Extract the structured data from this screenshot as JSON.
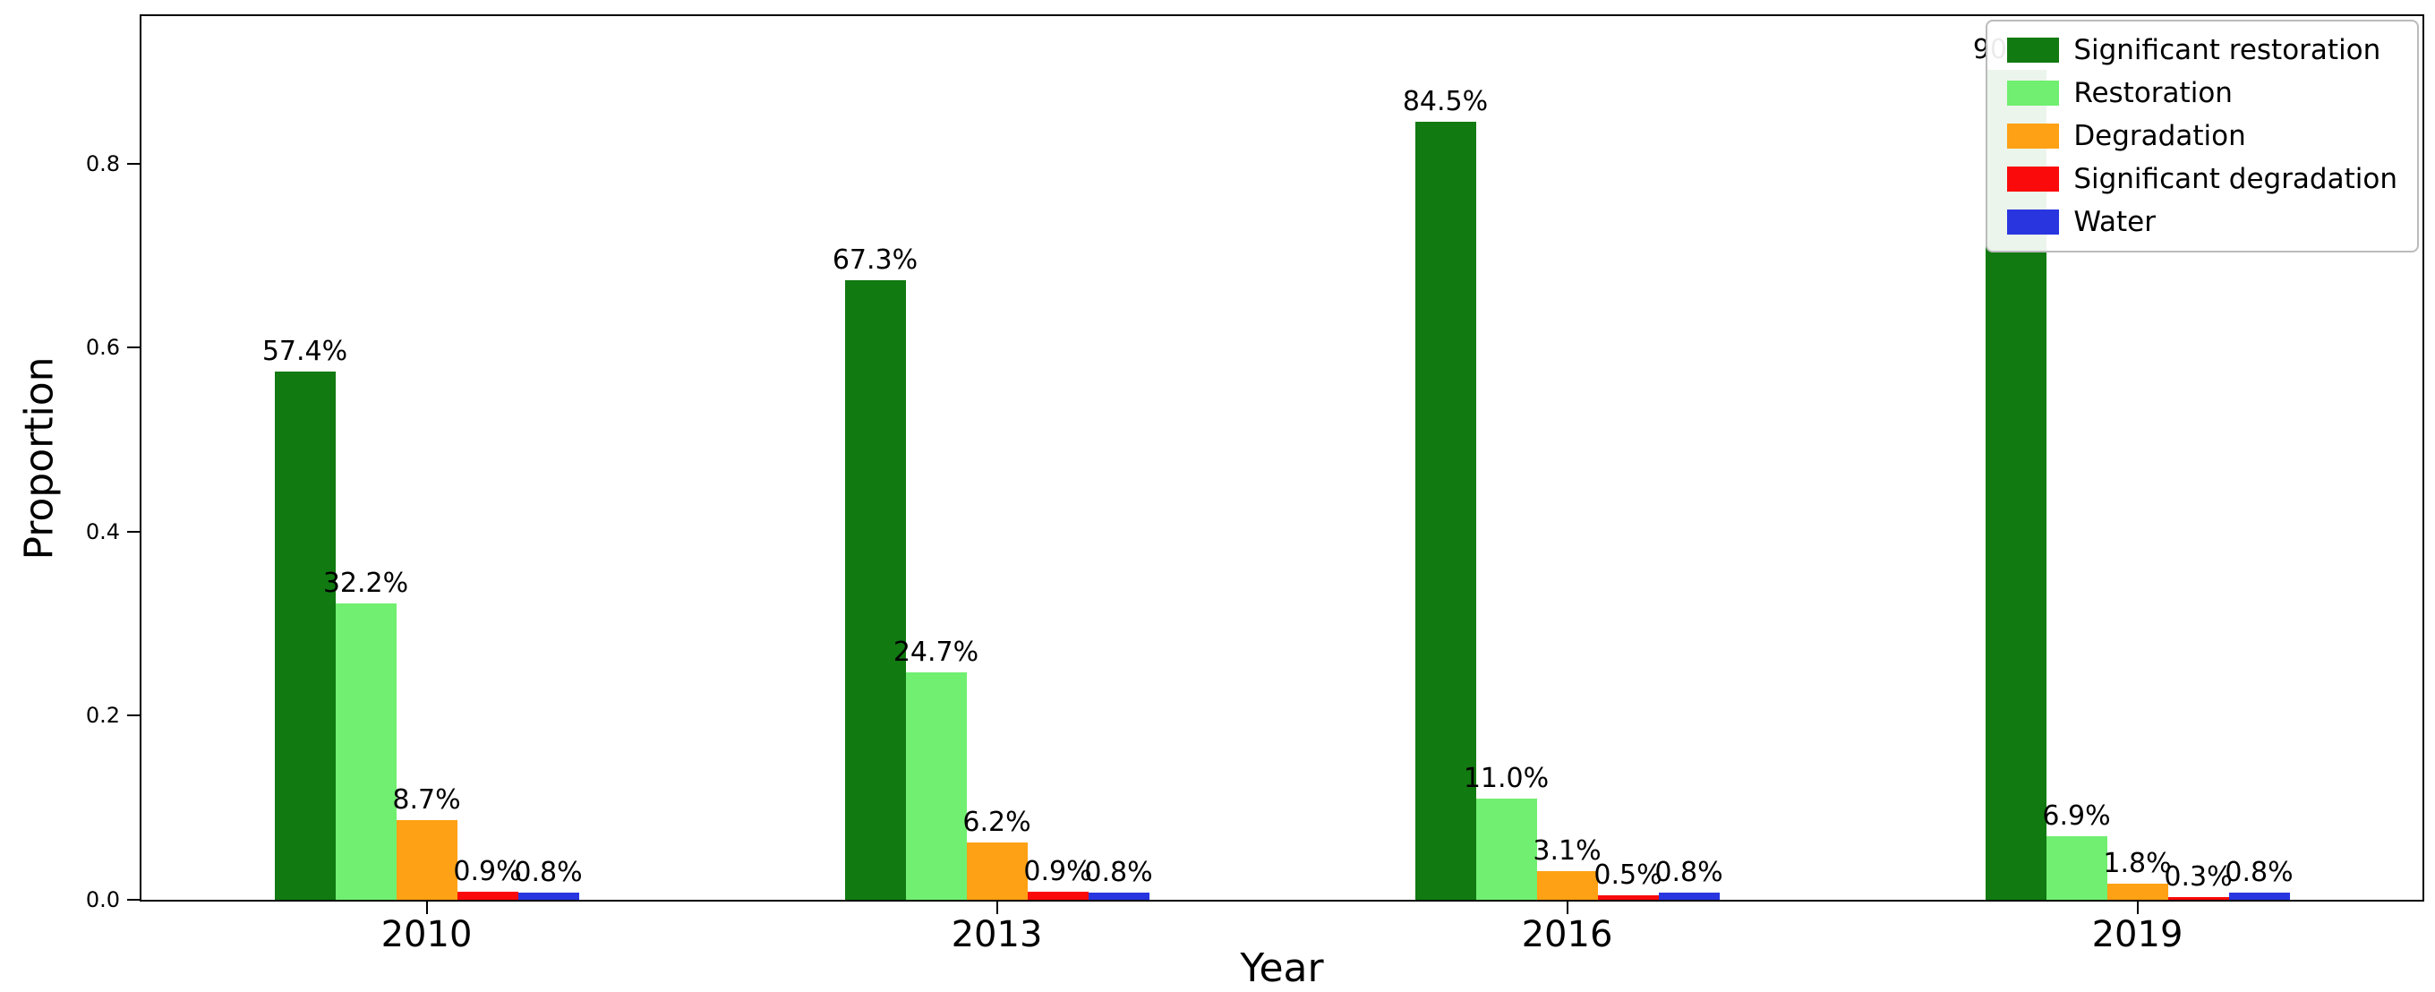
{
  "chart_data": {
    "type": "bar",
    "title": "",
    "xlabel": "Year",
    "ylabel": "Proportion",
    "categories": [
      "2010",
      "2013",
      "2016",
      "2019"
    ],
    "series": [
      {
        "name": "Significant restoration",
        "color": "#117a11",
        "values": [
          0.574,
          0.673,
          0.845,
          0.902
        ],
        "labels": [
          "57.4%",
          "67.3%",
          "84.5%",
          "90.2%"
        ]
      },
      {
        "name": "Restoration",
        "color": "#70ef70",
        "values": [
          0.322,
          0.247,
          0.11,
          0.069
        ],
        "labels": [
          "32.2%",
          "24.7%",
          "11.0%",
          "6.9%"
        ]
      },
      {
        "name": "Degradation",
        "color": "#ffa114",
        "values": [
          0.087,
          0.062,
          0.031,
          0.018
        ],
        "labels": [
          "8.7%",
          "6.2%",
          "3.1%",
          "1.8%"
        ]
      },
      {
        "name": "Significant degradation",
        "color": "#fa0a0a",
        "values": [
          0.009,
          0.009,
          0.005,
          0.003
        ],
        "labels": [
          "0.9%",
          "0.9%",
          "0.5%",
          "0.3%"
        ]
      },
      {
        "name": "Water",
        "color": "#2936e0",
        "values": [
          0.008,
          0.008,
          0.008,
          0.008
        ],
        "labels": [
          "0.8%",
          "0.8%",
          "0.8%",
          "0.8%"
        ]
      }
    ],
    "ylim": [
      0,
      0.96
    ],
    "yticks": [
      "0.0",
      "0.2",
      "0.4",
      "0.6",
      "0.8"
    ],
    "legend_position": "upper right",
    "grid": false,
    "background": "#ffffff"
  }
}
